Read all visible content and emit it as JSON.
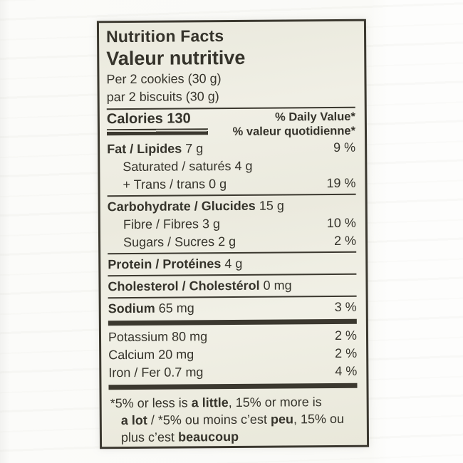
{
  "colors": {
    "ink": "#35332b",
    "label_background": "#edecE1",
    "photo_background": "#fbfbf9",
    "border": "#3b382f"
  },
  "label": {
    "title_en": "Nutrition Facts",
    "title_fr": "Valeur nutritive",
    "serving_en": "Per 2 cookies (30 g)",
    "serving_fr": "par 2 biscuits (30 g)",
    "calories_label": "Calories",
    "calories_value": "130",
    "dv_header_en": "% Daily Value*",
    "dv_header_fr": "% valeur quotidienne*",
    "rows": [
      {
        "bold": "Fat / Lipides",
        "rest": " 7 g",
        "pct": "9 %",
        "indent": false,
        "sep": "none"
      },
      {
        "bold": "",
        "rest": "Saturated / saturés 4 g",
        "pct": "",
        "indent": true,
        "sep": "none"
      },
      {
        "bold": "",
        "rest": "+ Trans / trans 0 g",
        "pct": "19 %",
        "indent": true,
        "sep": "none"
      },
      {
        "bold": "Carbohydrate / Glucides",
        "rest": " 15 g",
        "pct": "",
        "indent": false,
        "sep": "thin"
      },
      {
        "bold": "",
        "rest": "Fibre / Fibres 3 g",
        "pct": "10 %",
        "indent": true,
        "sep": "none"
      },
      {
        "bold": "",
        "rest": "Sugars / Sucres 2 g",
        "pct": "2 %",
        "indent": true,
        "sep": "none"
      },
      {
        "bold": "Protein / Protéines",
        "rest": " 4 g",
        "pct": "",
        "indent": false,
        "sep": "thin"
      },
      {
        "bold": "Cholesterol / Cholestérol",
        "rest": " 0 mg",
        "pct": "",
        "indent": false,
        "sep": "thin"
      },
      {
        "bold": "Sodium",
        "rest": " 65 mg",
        "pct": "3 %",
        "indent": false,
        "sep": "thin"
      },
      {
        "bold": "",
        "rest": "Potassium 80 mg",
        "pct": "2 %",
        "indent": false,
        "sep": "thick"
      },
      {
        "bold": "",
        "rest": "Calcium 20 mg",
        "pct": "2 %",
        "indent": false,
        "sep": "none"
      },
      {
        "bold": "",
        "rest": "Iron / Fer 0.7 mg",
        "pct": "4 %",
        "indent": false,
        "sep": "none"
      }
    ],
    "footnote": {
      "lines": [
        {
          "indent": false,
          "segments": [
            {
              "text": "*5% or less is "
            },
            {
              "text": "a little",
              "bold": true
            },
            {
              "text": ", 15% or more is"
            }
          ]
        },
        {
          "indent": true,
          "segments": [
            {
              "text": "a lot",
              "bold": true
            },
            {
              "text": " / *5% ou moins c’est "
            },
            {
              "text": "peu",
              "bold": true
            },
            {
              "text": ", 15% ou"
            }
          ]
        },
        {
          "indent": true,
          "segments": [
            {
              "text": "plus c’est "
            },
            {
              "text": "beaucoup",
              "bold": true
            }
          ]
        }
      ]
    }
  }
}
